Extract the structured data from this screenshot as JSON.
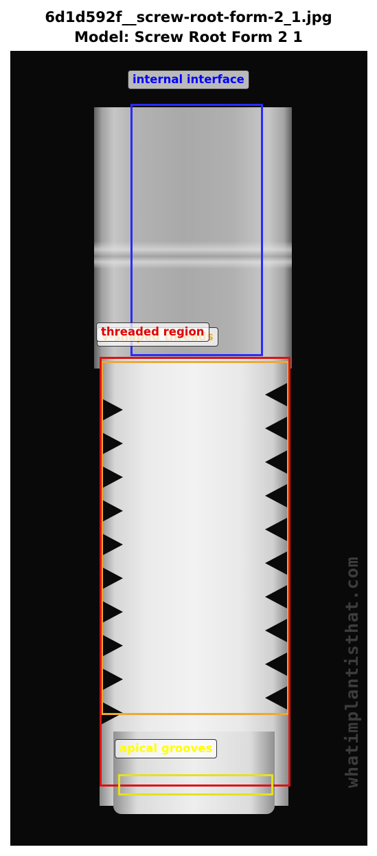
{
  "header": {
    "filename_line": "6d1d592f__screw-root-form-2_1.jpg",
    "model_line": "Model: Screw Root Form 2 1"
  },
  "image": {
    "watermark": "whatimplantisthat.com"
  },
  "annotations": [
    {
      "label": "internal interface",
      "color": "#0000ff"
    },
    {
      "label": "v-shaped threads",
      "color": "#f5a623"
    },
    {
      "label": "threaded region",
      "color": "#e00000"
    },
    {
      "label": "apical grooves",
      "color": "#ffff00"
    }
  ]
}
